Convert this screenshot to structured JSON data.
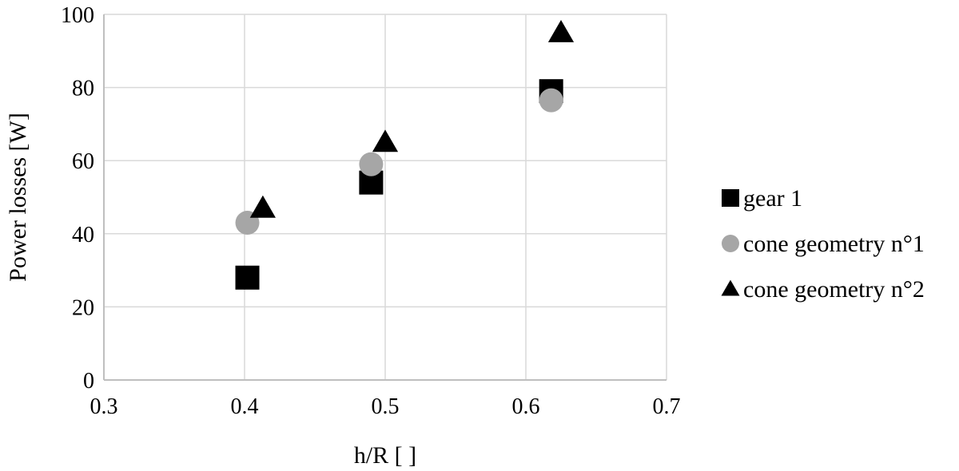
{
  "chart_data": {
    "type": "scatter",
    "title": "",
    "xlabel": "h/R [ ]",
    "ylabel": "Power losses [W]",
    "xlim": [
      0.3,
      0.7
    ],
    "ylim": [
      0,
      100
    ],
    "xticks": [
      "0.3",
      "0.4",
      "0.5",
      "0.6",
      "0.7"
    ],
    "yticks": [
      "0",
      "20",
      "40",
      "60",
      "80",
      "100"
    ],
    "xtick_values": [
      0.3,
      0.4,
      0.5,
      0.6,
      0.7
    ],
    "ytick_values": [
      0,
      20,
      40,
      60,
      80,
      100
    ],
    "grid": true,
    "legend_position": "right",
    "series": [
      {
        "name": "gear 1",
        "marker": "square",
        "color": "#000000",
        "x": [
          0.402,
          0.49,
          0.618
        ],
        "y": [
          28,
          54,
          79
        ]
      },
      {
        "name": "cone geometry n°1",
        "marker": "circle",
        "color": "#a6a6a6",
        "x": [
          0.402,
          0.49,
          0.618
        ],
        "y": [
          43,
          59,
          76.5
        ]
      },
      {
        "name": "cone geometry n°2",
        "marker": "triangle",
        "color": "#000000",
        "x": [
          0.413,
          0.5,
          0.625
        ],
        "y": [
          47,
          65,
          95
        ]
      }
    ]
  }
}
